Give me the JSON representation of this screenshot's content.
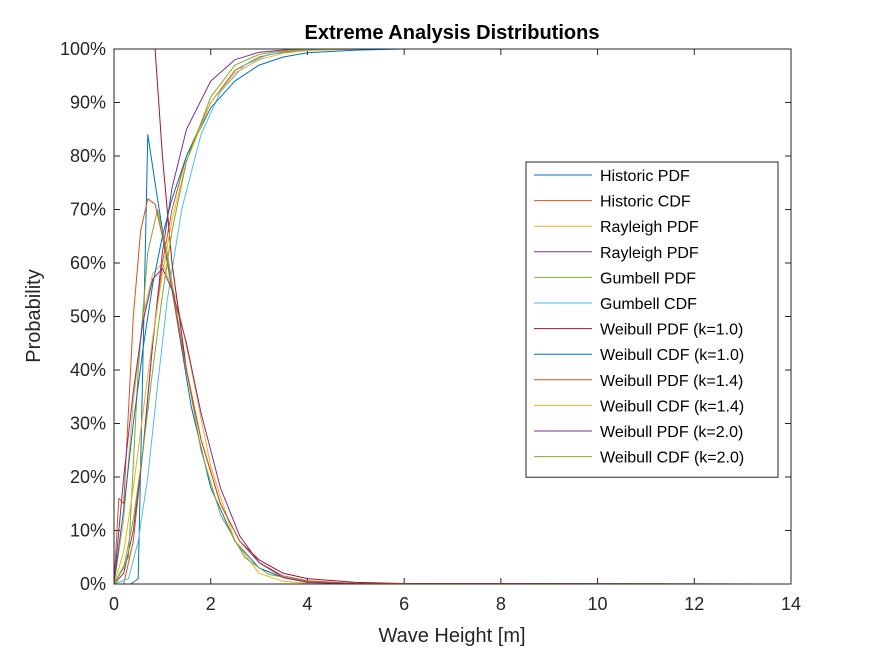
{
  "chart_data": {
    "type": "line",
    "title": "Extreme Analysis Distributions",
    "xlabel": "Wave Height [m]",
    "ylabel": "Probability",
    "xlim": [
      0,
      14
    ],
    "ylim": [
      0,
      1
    ],
    "xticks": [
      0,
      2,
      4,
      6,
      8,
      10,
      12,
      14
    ],
    "yticks": [
      0,
      0.1,
      0.2,
      0.3,
      0.4,
      0.5,
      0.6,
      0.7,
      0.8,
      0.9,
      1.0
    ],
    "ytick_labels": [
      "0%",
      "10%",
      "20%",
      "30%",
      "40%",
      "50%",
      "60%",
      "70%",
      "80%",
      "90%",
      "100%"
    ],
    "xtick_labels": [
      "0",
      "2",
      "4",
      "6",
      "8",
      "10",
      "12",
      "14"
    ],
    "legend_position": "right",
    "series": [
      {
        "name": "Historic PDF",
        "color": "#0072BD",
        "x": [
          0,
          0.35,
          0.5,
          0.7,
          0.9,
          1.2,
          1.6,
          2.0,
          2.5,
          3.0,
          3.5,
          4.0,
          5.0,
          6.0,
          14
        ],
        "y": [
          0,
          0,
          0.01,
          0.84,
          0.72,
          0.55,
          0.33,
          0.18,
          0.08,
          0.03,
          0.012,
          0.005,
          0.001,
          0,
          0
        ]
      },
      {
        "name": "Historic CDF",
        "color": "#D95319",
        "x": [
          0,
          0.2,
          0.4,
          0.6,
          0.8,
          1.0,
          1.2,
          1.5,
          2.0,
          2.5,
          3.0,
          3.5,
          4.0,
          5.0,
          14
        ],
        "y": [
          0,
          0,
          0.08,
          0.25,
          0.45,
          0.6,
          0.7,
          0.8,
          0.9,
          0.96,
          0.985,
          0.995,
          0.998,
          1.0,
          1.0
        ]
      },
      {
        "name": "Rayleigh PDF",
        "color": "#EDB120",
        "x": [
          0,
          0.2,
          0.4,
          0.6,
          0.8,
          1.0,
          1.3,
          1.6,
          2.0,
          2.5,
          3.0,
          3.5,
          4.0,
          5.0,
          14
        ],
        "y": [
          0,
          0.12,
          0.34,
          0.5,
          0.58,
          0.6,
          0.53,
          0.4,
          0.22,
          0.08,
          0.02,
          0.005,
          0.001,
          0,
          0
        ]
      },
      {
        "name": "Rayleigh PDF",
        "color": "#7E2F8E",
        "x": [
          0,
          0.2,
          0.4,
          0.6,
          0.8,
          1.0,
          1.2,
          1.5,
          2.0,
          2.5,
          3.0,
          3.5,
          4.0,
          5.0,
          14
        ],
        "y": [
          0,
          0.02,
          0.1,
          0.25,
          0.45,
          0.62,
          0.74,
          0.85,
          0.94,
          0.98,
          0.994,
          0.998,
          1.0,
          1.0,
          1.0
        ]
      },
      {
        "name": "Gumbell PDF",
        "color": "#77AC30",
        "x": [
          0,
          0.3,
          0.5,
          0.7,
          0.9,
          1.1,
          1.4,
          1.8,
          2.2,
          2.7,
          3.2,
          4.0,
          5.0,
          14
        ],
        "y": [
          0,
          0.05,
          0.4,
          0.62,
          0.7,
          0.62,
          0.45,
          0.25,
          0.13,
          0.05,
          0.018,
          0.004,
          0.001,
          0
        ]
      },
      {
        "name": "Gumbell CDF",
        "color": "#4DBEEE",
        "x": [
          0,
          0.3,
          0.5,
          0.7,
          0.9,
          1.1,
          1.4,
          1.8,
          2.2,
          2.7,
          3.2,
          4.0,
          5.0,
          14
        ],
        "y": [
          0,
          0.01,
          0.08,
          0.2,
          0.37,
          0.53,
          0.7,
          0.84,
          0.92,
          0.97,
          0.99,
          0.998,
          1.0,
          1.0
        ]
      },
      {
        "name": "Weibull PDF (k=1.0)",
        "color": "#A2142F",
        "x": [
          0.85,
          1.0,
          1.2,
          1.5,
          1.8,
          2.2,
          2.6,
          3.0,
          3.5,
          4.0,
          5.0,
          6.0,
          14
        ],
        "y": [
          1.0,
          0.8,
          0.6,
          0.4,
          0.27,
          0.15,
          0.08,
          0.045,
          0.02,
          0.01,
          0.003,
          0.001,
          0
        ]
      },
      {
        "name": "Weibull CDF (k=1.0)",
        "color": "#0072BD",
        "x": [
          0,
          0.2,
          0.4,
          0.6,
          0.8,
          1.0,
          1.2,
          1.5,
          2.0,
          2.5,
          3.0,
          3.5,
          4.0,
          5.0,
          6.0,
          14
        ],
        "y": [
          0,
          0.14,
          0.3,
          0.44,
          0.56,
          0.65,
          0.72,
          0.8,
          0.89,
          0.94,
          0.97,
          0.985,
          0.993,
          0.998,
          1.0,
          1.0
        ]
      },
      {
        "name": "Weibull PDF (k=1.4)",
        "color": "#D95319",
        "x": [
          0,
          0.1,
          0.2,
          0.4,
          0.55,
          0.7,
          0.85,
          1.0,
          1.2,
          1.5,
          1.8,
          2.2,
          2.6,
          3.0,
          3.5,
          4.0,
          5.0,
          14
        ],
        "y": [
          0,
          0.16,
          0.15,
          0.5,
          0.66,
          0.72,
          0.71,
          0.65,
          0.55,
          0.4,
          0.27,
          0.15,
          0.08,
          0.04,
          0.015,
          0.006,
          0.001,
          0
        ]
      },
      {
        "name": "Weibull CDF (k=1.4)",
        "color": "#EDB120",
        "x": [
          0,
          0.2,
          0.4,
          0.6,
          0.8,
          1.0,
          1.2,
          1.5,
          2.0,
          2.5,
          3.0,
          3.5,
          4.0,
          5.0,
          14
        ],
        "y": [
          0,
          0.06,
          0.18,
          0.32,
          0.46,
          0.58,
          0.68,
          0.79,
          0.9,
          0.955,
          0.98,
          0.992,
          0.997,
          1.0,
          1.0
        ]
      },
      {
        "name": "Weibull PDF (k=2.0)",
        "color": "#7E2F8E",
        "x": [
          0,
          0.2,
          0.4,
          0.6,
          0.8,
          1.0,
          1.2,
          1.5,
          1.8,
          2.2,
          2.6,
          3.0,
          3.5,
          4.0,
          5.0,
          14
        ],
        "y": [
          0,
          0.2,
          0.36,
          0.49,
          0.57,
          0.59,
          0.55,
          0.45,
          0.32,
          0.18,
          0.09,
          0.04,
          0.012,
          0.003,
          0,
          0
        ]
      },
      {
        "name": "Weibull CDF (k=2.0)",
        "color": "#77AC30",
        "x": [
          0,
          0.2,
          0.4,
          0.6,
          0.8,
          1.0,
          1.2,
          1.5,
          2.0,
          2.5,
          3.0,
          3.5,
          4.0,
          5.0,
          14
        ],
        "y": [
          0,
          0.03,
          0.12,
          0.25,
          0.4,
          0.54,
          0.66,
          0.79,
          0.91,
          0.97,
          0.99,
          0.997,
          1.0,
          1.0,
          1.0
        ]
      }
    ]
  }
}
